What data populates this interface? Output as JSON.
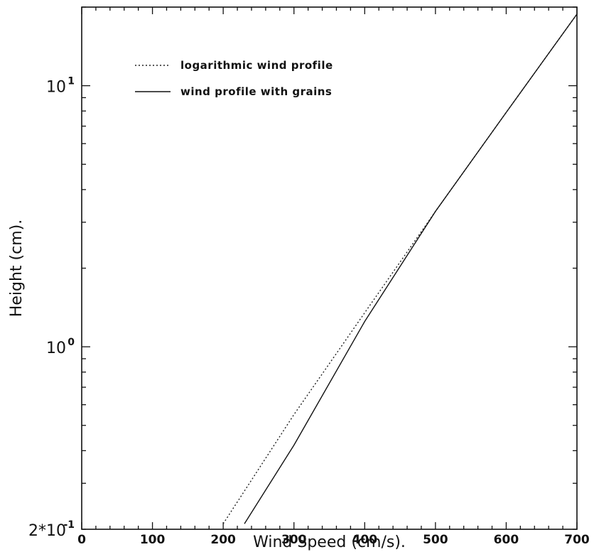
{
  "chart_data": {
    "type": "line",
    "xlabel": "Wind Speed  (cm/s).",
    "ylabel": "Height  (cm).",
    "xlim": [
      0,
      700
    ],
    "ylim": [
      0.2,
      20
    ],
    "yscale": "log",
    "x_ticks": [
      0,
      100,
      200,
      300,
      400,
      500,
      600,
      700
    ],
    "x_tick_labels": [
      "0",
      "100",
      "200",
      "300",
      "400",
      "500",
      "600",
      "700"
    ],
    "y_ticks": [
      0.2,
      1,
      10
    ],
    "y_tick_labels": [
      {
        "base": "2*10",
        "exp": "-1"
      },
      {
        "base": "10",
        "exp": "0"
      },
      {
        "base": "10",
        "exp": "1"
      }
    ],
    "legend_position": "top-left",
    "grid": false,
    "series": [
      {
        "name": "logarithmic wind profile",
        "style": "dotted",
        "color": "#222222",
        "x": [
          200,
          300,
          400,
          500,
          600,
          700
        ],
        "y": [
          0.21,
          0.55,
          1.35,
          3.3,
          7.9,
          18.8
        ]
      },
      {
        "name": "wind profile with grains",
        "style": "solid",
        "color": "#111111",
        "x": [
          230,
          300,
          400,
          500,
          600,
          700
        ],
        "y": [
          0.21,
          0.42,
          1.25,
          3.3,
          7.9,
          18.8
        ]
      }
    ]
  }
}
